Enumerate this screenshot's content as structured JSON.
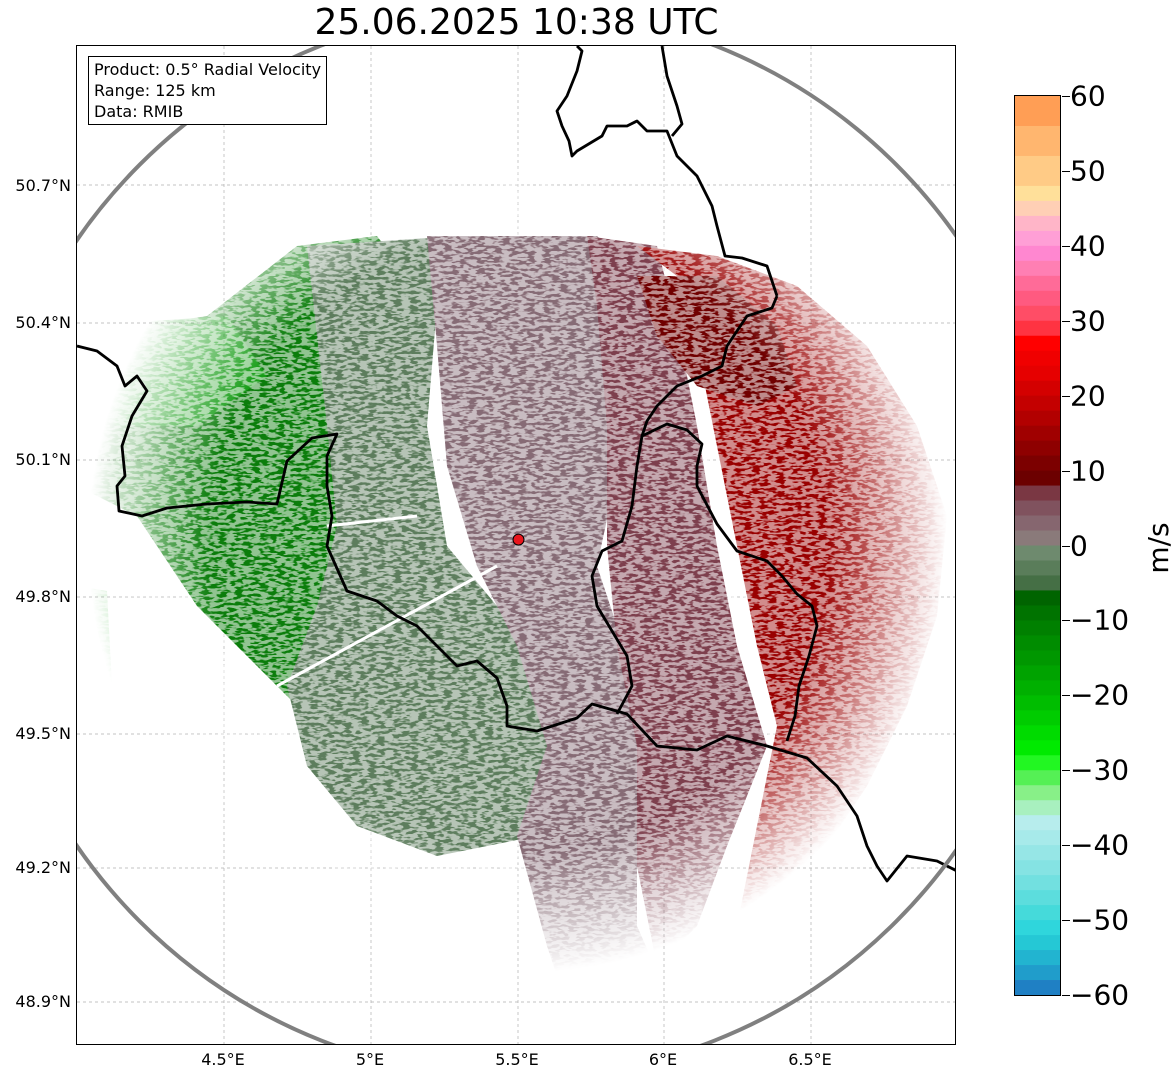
{
  "title": "25.06.2025 10:38 UTC",
  "info_box": {
    "product": "Product: 0.5° Radial Velocity",
    "range": "Range: 125 km",
    "data": "Data: RMIB"
  },
  "map": {
    "lon_range": [
      4.0,
      7.0
    ],
    "lat_range": [
      48.8,
      51.0
    ],
    "radar_site": {
      "lon": 5.505,
      "lat": 49.914
    },
    "lat_ticks": [
      "50.7°N",
      "50.4°N",
      "50.1°N",
      "49.8°N",
      "49.5°N",
      "49.2°N",
      "48.9°N"
    ],
    "lon_ticks": [
      "4.5°E",
      "5°E",
      "5.5°E",
      "6°E",
      "6.5°E"
    ],
    "gridlines": true,
    "colors": {
      "range_ring": "#808080",
      "borders": "#000000",
      "radar_marker": "#e8161d",
      "inbound_strong": "#008a00",
      "inbound_weak": "#5d7d5d",
      "near_zero": "#866b75",
      "outbound_weak": "#7d3f4d",
      "outbound_strong": "#990000"
    }
  },
  "colorbar": {
    "unit": "m/s",
    "min": -60,
    "max": 60,
    "tick_labels": [
      "60",
      "50",
      "40",
      "30",
      "20",
      "10",
      "0",
      "−10",
      "−20",
      "−30",
      "−40",
      "−50",
      "−60"
    ],
    "tick_values": [
      60,
      50,
      40,
      30,
      20,
      10,
      0,
      -10,
      -20,
      -30,
      -40,
      -50,
      -60
    ],
    "bands": [
      {
        "from": 56,
        "to": 60,
        "color": "#ff9e55"
      },
      {
        "from": 52,
        "to": 56,
        "color": "#ffb66f"
      },
      {
        "from": 48,
        "to": 52,
        "color": "#ffcb86"
      },
      {
        "from": 46,
        "to": 48,
        "color": "#ffe09a"
      },
      {
        "from": 44,
        "to": 46,
        "color": "#ffcfb5"
      },
      {
        "from": 42,
        "to": 44,
        "color": "#ffb5c8"
      },
      {
        "from": 40,
        "to": 42,
        "color": "#ff9fd6"
      },
      {
        "from": 38,
        "to": 40,
        "color": "#ff87d0"
      },
      {
        "from": 36,
        "to": 38,
        "color": "#ff7fb3"
      },
      {
        "from": 34,
        "to": 36,
        "color": "#ff6b98"
      },
      {
        "from": 32,
        "to": 34,
        "color": "#ff5a80"
      },
      {
        "from": 30,
        "to": 32,
        "color": "#ff4d66"
      },
      {
        "from": 28,
        "to": 30,
        "color": "#ff3342"
      },
      {
        "from": 26,
        "to": 28,
        "color": "#ff0000"
      },
      {
        "from": 24,
        "to": 26,
        "color": "#f00000"
      },
      {
        "from": 22,
        "to": 24,
        "color": "#e60000"
      },
      {
        "from": 20,
        "to": 22,
        "color": "#d40000"
      },
      {
        "from": 18,
        "to": 20,
        "color": "#c40000"
      },
      {
        "from": 16,
        "to": 18,
        "color": "#b20000"
      },
      {
        "from": 14,
        "to": 16,
        "color": "#a00000"
      },
      {
        "from": 12,
        "to": 14,
        "color": "#8e0000"
      },
      {
        "from": 10,
        "to": 12,
        "color": "#7c0000"
      },
      {
        "from": 8,
        "to": 10,
        "color": "#6c0000"
      },
      {
        "from": 6,
        "to": 8,
        "color": "#7a3743"
      },
      {
        "from": 4,
        "to": 6,
        "color": "#80525e"
      },
      {
        "from": 2,
        "to": 4,
        "color": "#86666f"
      },
      {
        "from": 0,
        "to": 2,
        "color": "#8a7a7a"
      },
      {
        "from": -2,
        "to": 0,
        "color": "#6e8a6e"
      },
      {
        "from": -4,
        "to": -2,
        "color": "#5a7d5a"
      },
      {
        "from": -6,
        "to": -4,
        "color": "#456f45"
      },
      {
        "from": -8,
        "to": -6,
        "color": "#006400"
      },
      {
        "from": -10,
        "to": -8,
        "color": "#007300"
      },
      {
        "from": -12,
        "to": -10,
        "color": "#008000"
      },
      {
        "from": -14,
        "to": -12,
        "color": "#008c00"
      },
      {
        "from": -16,
        "to": -14,
        "color": "#009700"
      },
      {
        "from": -18,
        "to": -16,
        "color": "#00a300"
      },
      {
        "from": -20,
        "to": -18,
        "color": "#00b000"
      },
      {
        "from": -22,
        "to": -20,
        "color": "#00bd00"
      },
      {
        "from": -24,
        "to": -22,
        "color": "#00cc00"
      },
      {
        "from": -26,
        "to": -24,
        "color": "#00db00"
      },
      {
        "from": -28,
        "to": -26,
        "color": "#00ea00"
      },
      {
        "from": -30,
        "to": -28,
        "color": "#22f722"
      },
      {
        "from": -32,
        "to": -30,
        "color": "#55f055"
      },
      {
        "from": -34,
        "to": -32,
        "color": "#88f088"
      },
      {
        "from": -36,
        "to": -34,
        "color": "#a8f0bf"
      },
      {
        "from": -38,
        "to": -36,
        "color": "#b7eded"
      },
      {
        "from": -40,
        "to": -38,
        "color": "#a7eaea"
      },
      {
        "from": -42,
        "to": -40,
        "color": "#96e6e6"
      },
      {
        "from": -44,
        "to": -42,
        "color": "#85e3e3"
      },
      {
        "from": -46,
        "to": -44,
        "color": "#72e0e0"
      },
      {
        "from": -48,
        "to": -46,
        "color": "#5cdddd"
      },
      {
        "from": -50,
        "to": -48,
        "color": "#45dada"
      },
      {
        "from": -52,
        "to": -50,
        "color": "#2fd6dc"
      },
      {
        "from": -54,
        "to": -52,
        "color": "#25c8d5"
      },
      {
        "from": -56,
        "to": -54,
        "color": "#22b4d0"
      },
      {
        "from": -58,
        "to": -56,
        "color": "#209dcb"
      },
      {
        "from": -60,
        "to": -58,
        "color": "#1f80c4"
      }
    ]
  }
}
